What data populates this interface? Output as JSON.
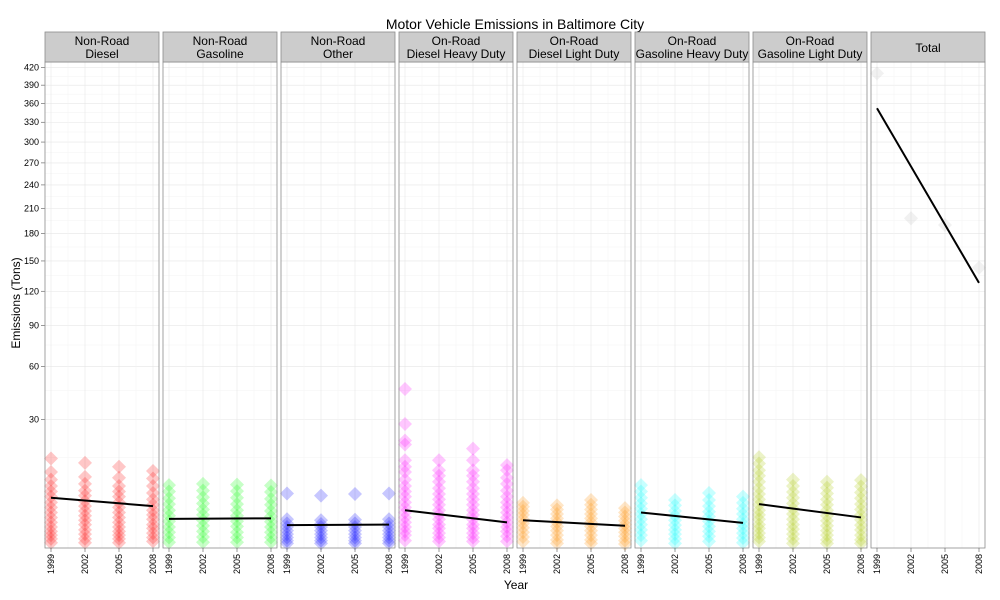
{
  "chart_data": {
    "type": "scatter",
    "title": "Motor Vehicle Emissions in Baltimore City",
    "xlabel": "Year",
    "ylabel": "Emissions (Tons)",
    "y_scale": "sqrt",
    "ylim": [
      0,
      430
    ],
    "y_ticks": [
      30,
      60,
      90,
      120,
      150,
      180,
      210,
      240,
      270,
      300,
      330,
      360,
      390,
      420
    ],
    "x_ticks": [
      1999,
      2002,
      2005,
      2008
    ],
    "grid": true,
    "legend": "none",
    "trend_line_color": "#000000",
    "panels": [
      {
        "id": "nonroad-diesel",
        "line1": "Non-Road",
        "line2": "Diesel",
        "color": "#ff0000",
        "trend": [
          [
            1999,
            4.6
          ],
          [
            2008,
            3.2
          ]
        ],
        "points": [
          {
            "x": 1999,
            "y": [
              14.6,
              10.5,
              8.5,
              7.0,
              5.8,
              4.8,
              3.8,
              3.0,
              2.3,
              1.7,
              1.2,
              0.8,
              0.5,
              0.3,
              0.15,
              0.05
            ]
          },
          {
            "x": 2002,
            "y": [
              13.2,
              9.2,
              7.5,
              6.0,
              5.0,
              4.0,
              3.2,
              2.5,
              1.9,
              1.4,
              1.0,
              0.6,
              0.35,
              0.15,
              0.05
            ]
          },
          {
            "x": 2005,
            "y": [
              12.0,
              9.0,
              7.0,
              5.8,
              4.8,
              3.8,
              3.0,
              2.3,
              1.7,
              1.2,
              0.8,
              0.5,
              0.3,
              0.15,
              0.05
            ]
          },
          {
            "x": 2008,
            "y": [
              10.8,
              8.8,
              7.0,
              5.5,
              4.3,
              3.4,
              2.6,
              2.0,
              1.5,
              1.0,
              0.7,
              0.4,
              0.2,
              0.08
            ]
          }
        ]
      },
      {
        "id": "nonroad-gasoline",
        "line1": "Non-Road",
        "line2": "Gasoline",
        "color": "#00ff00",
        "trend": [
          [
            1999,
            1.55
          ],
          [
            2008,
            1.6
          ]
        ],
        "points": [
          {
            "x": 1999,
            "y": [
              7.2,
              5.8,
              4.5,
              3.5,
              2.6,
              1.9,
              1.3,
              0.8,
              0.45,
              0.2,
              0.06
            ]
          },
          {
            "x": 2002,
            "y": [
              7.5,
              6.0,
              4.7,
              3.6,
              2.7,
              2.0,
              1.4,
              0.9,
              0.5,
              0.22,
              0.06
            ]
          },
          {
            "x": 2005,
            "y": [
              7.3,
              5.9,
              4.6,
              3.5,
              2.6,
              1.9,
              1.3,
              0.85,
              0.45,
              0.2,
              0.06
            ]
          },
          {
            "x": 2008,
            "y": [
              7.1,
              5.7,
              4.4,
              3.4,
              2.5,
              1.8,
              1.25,
              0.8,
              0.45,
              0.2,
              0.06
            ]
          }
        ]
      },
      {
        "id": "nonroad-other",
        "line1": "Non-Road",
        "line2": "Other",
        "color": "#0000ff",
        "trend": [
          [
            1999,
            0.95
          ],
          [
            2008,
            1.0
          ]
        ],
        "points": [
          {
            "x": 1999,
            "y": [
              5.4,
              1.5,
              1.1,
              0.8,
              0.55,
              0.35,
              0.2,
              0.1,
              0.04
            ]
          },
          {
            "x": 2002,
            "y": [
              5.0,
              1.4,
              1.05,
              0.8,
              0.55,
              0.35,
              0.2,
              0.1,
              0.04
            ]
          },
          {
            "x": 2005,
            "y": [
              5.3,
              1.45,
              1.1,
              0.8,
              0.55,
              0.35,
              0.2,
              0.1,
              0.04
            ]
          },
          {
            "x": 2008,
            "y": [
              5.4,
              1.5,
              1.1,
              0.8,
              0.55,
              0.35,
              0.2,
              0.1,
              0.04
            ]
          }
        ]
      },
      {
        "id": "onroad-diesel-heavy",
        "line1": "On-Road",
        "line2": "Diesel Heavy Duty",
        "color": "#ff00ff",
        "trend": [
          [
            1999,
            2.6
          ],
          [
            2008,
            1.2
          ]
        ],
        "points": [
          {
            "x": 1999,
            "y": [
              46.0,
              28.0,
              21.0,
              19.5,
              14.0,
              12.0,
              10.5,
              8.5,
              7.0,
              5.8,
              4.8,
              3.8,
              3.0,
              2.3,
              1.7,
              1.2,
              0.8,
              0.5,
              0.3,
              0.1
            ]
          },
          {
            "x": 2002,
            "y": [
              14.0,
              11.0,
              9.5,
              8.0,
              6.5,
              5.3,
              4.3,
              3.4,
              2.6,
              2.0,
              1.5,
              1.0,
              0.7,
              0.4,
              0.2,
              0.08
            ]
          },
          {
            "x": 2005,
            "y": [
              18.0,
              14.0,
              11.0,
              9.5,
              8.0,
              6.5,
              5.3,
              4.3,
              3.4,
              2.6,
              2.0,
              1.5,
              1.0,
              0.7,
              0.4,
              0.2,
              0.08
            ]
          },
          {
            "x": 2008,
            "y": [
              12.5,
              11.0,
              9.0,
              7.5,
              6.0,
              4.8,
              3.8,
              3.0,
              2.3,
              1.7,
              1.2,
              0.8,
              0.5,
              0.25,
              0.08
            ]
          }
        ]
      },
      {
        "id": "onroad-diesel-light",
        "line1": "On-Road",
        "line2": "Diesel Light Duty",
        "color": "#ff8c00",
        "trend": [
          [
            1999,
            1.4
          ],
          [
            2008,
            0.9
          ]
        ],
        "points": [
          {
            "x": 1999,
            "y": [
              3.7,
              3.1,
              2.5,
              2.0,
              1.5,
              1.1,
              0.75,
              0.45,
              0.22,
              0.07
            ]
          },
          {
            "x": 2002,
            "y": [
              3.3,
              2.7,
              2.1,
              1.6,
              1.2,
              0.85,
              0.55,
              0.3,
              0.12,
              0.04
            ]
          },
          {
            "x": 2005,
            "y": [
              4.2,
              3.4,
              2.7,
              2.1,
              1.6,
              1.2,
              0.85,
              0.55,
              0.3,
              0.12,
              0.04
            ]
          },
          {
            "x": 2008,
            "y": [
              2.9,
              2.3,
              1.8,
              1.35,
              1.0,
              0.7,
              0.45,
              0.25,
              0.1,
              0.03
            ]
          }
        ]
      },
      {
        "id": "onroad-gasoline-heavy",
        "line1": "On-Road",
        "line2": "Gasoline Heavy Duty",
        "color": "#00ffff",
        "trend": [
          [
            1999,
            2.3
          ],
          [
            2008,
            1.15
          ]
        ],
        "points": [
          {
            "x": 1999,
            "y": [
              7.2,
              5.8,
              4.6,
              3.6,
              2.8,
              2.1,
              1.5,
              1.0,
              0.6,
              0.3,
              0.1
            ]
          },
          {
            "x": 2002,
            "y": [
              4.2,
              3.3,
              2.5,
              1.9,
              1.4,
              0.95,
              0.6,
              0.35,
              0.15,
              0.04
            ]
          },
          {
            "x": 2005,
            "y": [
              5.5,
              4.2,
              3.2,
              2.4,
              1.8,
              1.3,
              0.85,
              0.5,
              0.25,
              0.08
            ]
          },
          {
            "x": 2008,
            "y": [
              4.8,
              3.7,
              2.8,
              2.1,
              1.5,
              1.05,
              0.7,
              0.4,
              0.18,
              0.05
            ]
          }
        ]
      },
      {
        "id": "onroad-gasoline-light",
        "line1": "On-Road",
        "line2": "Gasoline Light Duty",
        "color": "#a8c800",
        "trend": [
          [
            1999,
            3.5
          ],
          [
            2008,
            1.7
          ]
        ],
        "points": [
          {
            "x": 1999,
            "y": [
              15.0,
              13.0,
              11.0,
              9.5,
              8.0,
              6.5,
              5.3,
              4.3,
              3.4,
              2.6,
              2.0,
              1.5,
              1.0,
              0.7,
              0.4,
              0.2,
              0.08
            ]
          },
          {
            "x": 2002,
            "y": [
              8.5,
              7.0,
              5.7,
              4.6,
              3.6,
              2.8,
              2.1,
              1.5,
              1.0,
              0.65,
              0.35,
              0.15,
              0.04
            ]
          },
          {
            "x": 2005,
            "y": [
              8.0,
              6.6,
              5.4,
              4.3,
              3.4,
              2.6,
              1.9,
              1.35,
              0.9,
              0.55,
              0.3,
              0.12,
              0.04
            ]
          },
          {
            "x": 2008,
            "y": [
              8.4,
              6.9,
              5.6,
              4.5,
              3.5,
              2.7,
              2.0,
              1.45,
              0.95,
              0.6,
              0.3,
              0.12,
              0.04
            ]
          }
        ]
      },
      {
        "id": "total",
        "line1": "",
        "line2": "Total",
        "color": "#bebebe",
        "trend": [
          [
            1999,
            352
          ],
          [
            2008,
            128
          ]
        ],
        "points": [
          {
            "x": 1999,
            "y": [
              410
            ]
          },
          {
            "x": 2002,
            "y": [
              198
            ]
          },
          {
            "x": 2005,
            "y": [
              190
            ]
          },
          {
            "x": 2008,
            "y": [
              143
            ]
          }
        ]
      }
    ]
  }
}
